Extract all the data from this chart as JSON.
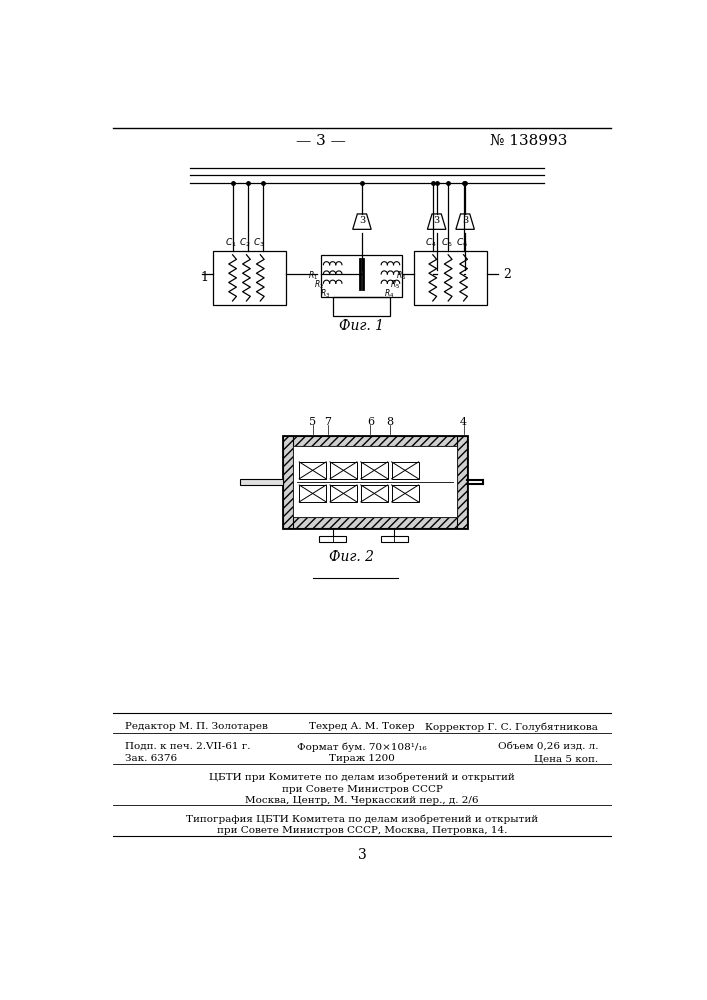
{
  "page_number": "— 3 —",
  "patent_number": "№ 138993",
  "fig1_caption": "Фиг. 1",
  "fig2_caption": "Фиг. 2",
  "footer_line1_left": "Редактор М. П. Золотарев",
  "footer_line1_mid": "Техред А. М. Токер",
  "footer_line1_right": "Корректор Г. С. Голубятникова",
  "footer_line2_left": "Подп. к печ. 2.VII-61 г.",
  "footer_line2_mid": "Формат бум. 70×108¹/₁₆",
  "footer_line2_right": "Объем 0,26 изд. л.",
  "footer_line3_left": "Зак. 6376",
  "footer_line3_mid": "Тираж 1200",
  "footer_line3_right": "Цена 5 коп.",
  "footer_line4": "ЦБТИ при Комитете по делам изобретений и открытий",
  "footer_line5": "при Совете Министров СССР",
  "footer_line6": "Москва, Центр, М. Черкасский пер., д. 2/6",
  "footer_line7": "Типография ЦБТИ Комитета по делам изобретений и открытий",
  "footer_line8": "при Совете Министров СССР, Москва, Петровка, 14.",
  "page_num_bottom": "3",
  "bg_color": "#ffffff",
  "line_color": "#000000",
  "text_color": "#000000"
}
